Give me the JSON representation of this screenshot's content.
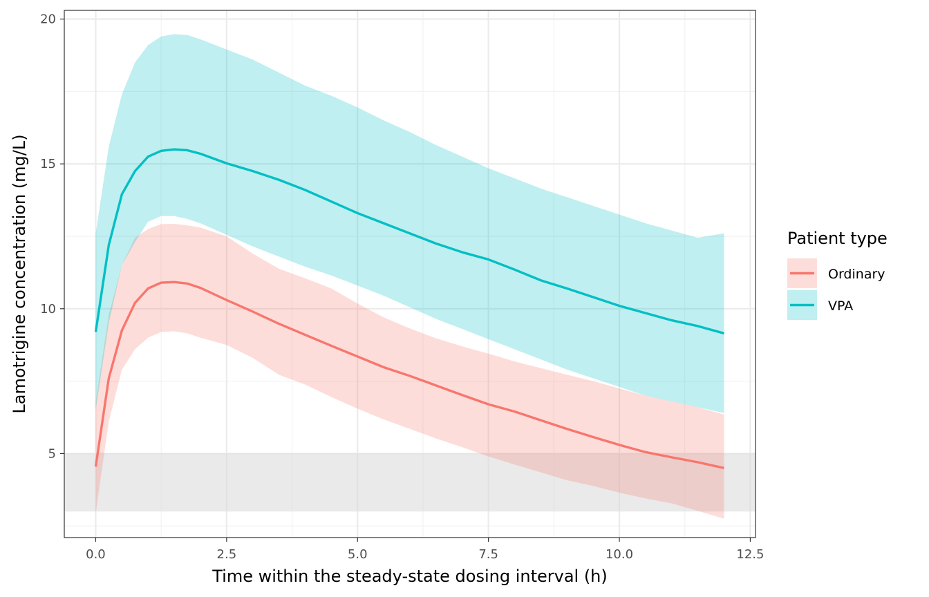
{
  "chart_data": {
    "type": "line",
    "xlabel": "Time within the steady-state dosing interval (h)",
    "ylabel": "Lamotrigine concentration (mg/L)",
    "xlim": [
      -0.6,
      12.6
    ],
    "ylim": [
      2.1,
      20.3
    ],
    "xticks": [
      0.0,
      2.5,
      5.0,
      7.5,
      10.0,
      12.5
    ],
    "xtick_labels": [
      "0.0",
      "2.5",
      "5.0",
      "7.5",
      "10.0",
      "12.5"
    ],
    "yticks": [
      5,
      10,
      15,
      20
    ],
    "ytick_labels": [
      "5",
      "10",
      "15",
      "20"
    ],
    "grid": true,
    "theme": "bw",
    "reference_band": {
      "ymin": 3,
      "ymax": 5,
      "color": "#d9d9d9"
    },
    "legend": {
      "title": "Patient type",
      "position": "right"
    },
    "series": [
      {
        "name": "Ordinary",
        "color": "#F8766D",
        "x": [
          0,
          0.25,
          0.5,
          0.75,
          1.0,
          1.25,
          1.5,
          1.75,
          2.0,
          2.5,
          3.0,
          3.5,
          4.0,
          4.5,
          5.0,
          5.5,
          6.0,
          6.5,
          7.0,
          7.5,
          8.0,
          8.5,
          9.0,
          9.5,
          10.0,
          10.5,
          11.0,
          11.5,
          12.0
        ],
        "median": [
          4.55,
          7.6,
          9.25,
          10.2,
          10.7,
          10.9,
          10.92,
          10.87,
          10.72,
          10.3,
          9.9,
          9.48,
          9.1,
          8.72,
          8.35,
          7.98,
          7.68,
          7.35,
          7.02,
          6.7,
          6.45,
          6.15,
          5.85,
          5.57,
          5.3,
          5.05,
          4.87,
          4.7,
          4.5
        ],
        "lower": [
          2.95,
          6.1,
          7.9,
          8.6,
          9.0,
          9.2,
          9.22,
          9.15,
          9.0,
          8.75,
          8.3,
          7.72,
          7.38,
          6.95,
          6.55,
          6.18,
          5.85,
          5.52,
          5.22,
          4.9,
          4.62,
          4.35,
          4.08,
          3.88,
          3.65,
          3.45,
          3.28,
          3.02,
          2.75
        ],
        "upper": [
          6.8,
          9.8,
          11.5,
          12.45,
          12.75,
          12.92,
          12.93,
          12.88,
          12.8,
          12.5,
          11.9,
          11.38,
          11.05,
          10.7,
          10.18,
          9.7,
          9.32,
          8.98,
          8.7,
          8.45,
          8.18,
          7.95,
          7.72,
          7.5,
          7.25,
          7.0,
          6.8,
          6.6,
          6.35
        ]
      },
      {
        "name": "VPA",
        "color": "#00BFC4",
        "x": [
          0,
          0.25,
          0.5,
          0.75,
          1.0,
          1.25,
          1.5,
          1.75,
          2.0,
          2.5,
          3.0,
          3.5,
          4.0,
          4.5,
          5.0,
          5.5,
          6.0,
          6.5,
          7.0,
          7.5,
          8.0,
          8.5,
          9.0,
          9.5,
          10.0,
          10.5,
          11.0,
          11.5,
          12.0
        ],
        "median": [
          9.2,
          12.2,
          13.95,
          14.75,
          15.25,
          15.45,
          15.5,
          15.47,
          15.35,
          15.02,
          14.75,
          14.45,
          14.1,
          13.7,
          13.3,
          12.95,
          12.6,
          12.25,
          11.95,
          11.7,
          11.35,
          10.98,
          10.7,
          10.4,
          10.1,
          9.85,
          9.6,
          9.4,
          9.15
        ],
        "lower": [
          6.5,
          9.5,
          11.5,
          12.3,
          13.0,
          13.2,
          13.2,
          13.1,
          12.95,
          12.55,
          12.15,
          11.8,
          11.45,
          11.15,
          10.8,
          10.45,
          10.05,
          9.65,
          9.3,
          8.95,
          8.6,
          8.25,
          7.9,
          7.6,
          7.3,
          7.0,
          6.8,
          6.6,
          6.4
        ],
        "upper": [
          12.6,
          15.6,
          17.4,
          18.5,
          19.1,
          19.4,
          19.48,
          19.45,
          19.3,
          18.95,
          18.6,
          18.15,
          17.7,
          17.35,
          16.95,
          16.5,
          16.1,
          15.65,
          15.25,
          14.85,
          14.5,
          14.15,
          13.85,
          13.55,
          13.25,
          12.95,
          12.7,
          12.45,
          12.6
        ]
      }
    ]
  }
}
